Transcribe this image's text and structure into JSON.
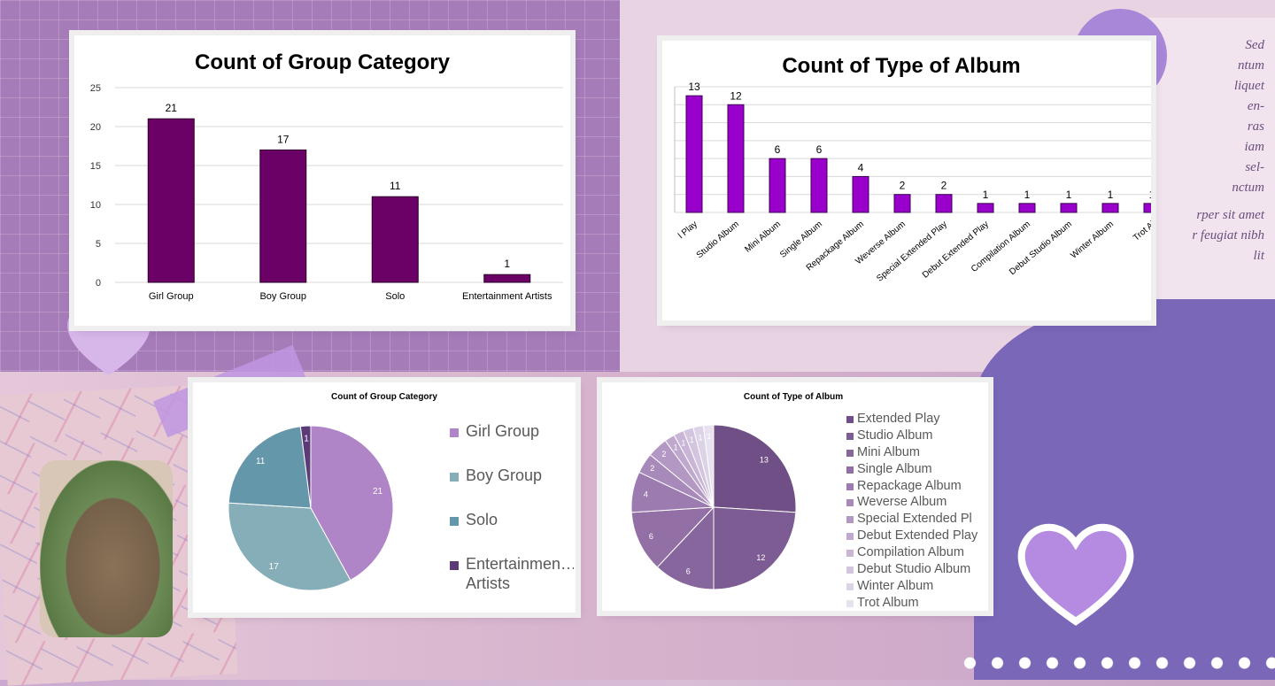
{
  "background_text": [
    "Sed",
    "ntum",
    "liquet",
    "en-",
    "ras",
    "iam",
    "sel-",
    "nctum",
    "rper sit amet",
    "r feugiat nibh",
    "lit"
  ],
  "colors": {
    "bar_group": "#6b0066",
    "bar_album": "#9900cc",
    "pie_group": [
      "#b085c8",
      "#86aeb8",
      "#6597ab",
      "#5b3a78"
    ],
    "pie_album": [
      "#6f4f85",
      "#7c5c92",
      "#87659d",
      "#9270a6",
      "#9c7bb0",
      "#a88aba",
      "#b398c4",
      "#bea8cd",
      "#c9b6d6",
      "#d3c5df",
      "#ddd3e7",
      "#e8e1ef"
    ]
  },
  "chart_data": [
    {
      "type": "bar",
      "title": "Count of Group Category",
      "categories": [
        "Girl Group",
        "Boy Group",
        "Solo",
        "Entertainment Artists"
      ],
      "values": [
        21,
        17,
        11,
        1
      ],
      "ylim": [
        0,
        25
      ],
      "yticks": [
        "0",
        "5",
        "10",
        "15",
        "20",
        "25"
      ],
      "grid": true,
      "data_labels": true
    },
    {
      "type": "bar",
      "title": "Count of Type of Album",
      "categories": [
        "Extended Play",
        "Studio Album",
        "Mini Album",
        "Single Album",
        "Repackage Album",
        "Weverse Album",
        "Special Extended Play",
        "Debut Extended Play",
        "Compilation Album",
        "Debut Studio Album",
        "Winter Album",
        "Trot Album"
      ],
      "category_labels_shown": [
        "l Play",
        "Studio Album",
        "Mini Album",
        "Single Album",
        "Repackage Album",
        "Weverse Album",
        "Special Extended Play",
        "Debut Extended Play",
        "Compilation Album",
        "Debut Studio Album",
        "Winter Album",
        "Trot Al"
      ],
      "values": [
        13,
        12,
        6,
        6,
        4,
        2,
        2,
        1,
        1,
        1,
        1,
        1
      ],
      "grid": true,
      "data_labels": true
    },
    {
      "type": "pie",
      "title": "Count of Group Category",
      "categories": [
        "Girl Group",
        "Boy Group",
        "Solo",
        "Entertainment Artists"
      ],
      "legend_labels": [
        "Girl Group",
        "Boy Group",
        "Solo",
        "Entertainmen… Artists"
      ],
      "values": [
        21,
        17,
        11,
        1
      ],
      "legend": "right",
      "data_labels": true
    },
    {
      "type": "pie",
      "title": "Count of Type of Album",
      "categories": [
        "Extended Play",
        "Studio Album",
        "Mini Album",
        "Single Album",
        "Repackage Album",
        "Weverse Album",
        "Special Extended Play",
        "Debut Extended Play",
        "Compilation Album",
        "Debut Studio Album",
        "Winter Album",
        "Trot Album"
      ],
      "legend_labels": [
        "Extended Play",
        "Studio Album",
        "Mini Album",
        "Single Album",
        "Repackage Album",
        "Weverse Album",
        "Special Extended Pl",
        "Debut Extended Play",
        "Compilation Album",
        "Debut Studio Album",
        "Winter Album",
        "Trot Album"
      ],
      "values": [
        13,
        12,
        6,
        6,
        4,
        2,
        2,
        1,
        1,
        1,
        1,
        1
      ],
      "legend": "right",
      "data_labels": true
    }
  ]
}
